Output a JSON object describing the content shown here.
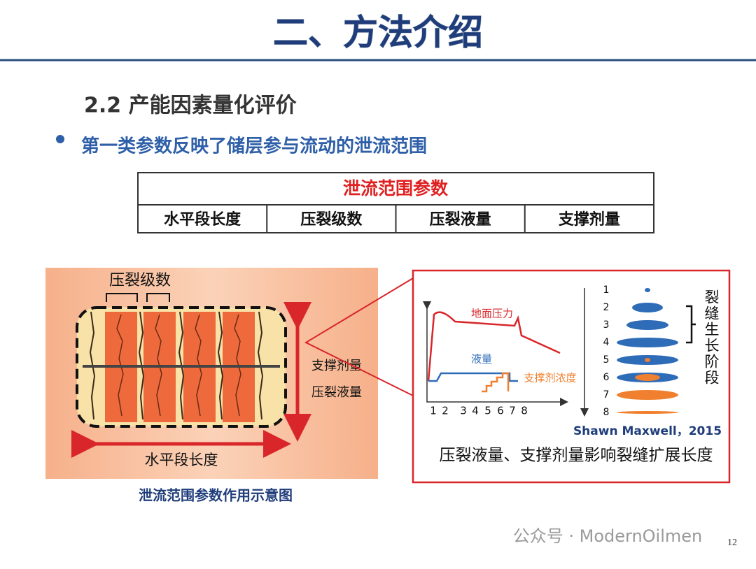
{
  "header": {
    "title": "二、方法介绍"
  },
  "section": {
    "title": "2.2 产能因素量化评价",
    "bullet": "第一类参数反映了储层参与流动的泄流范围"
  },
  "table": {
    "header": "泄流范围参数",
    "cells": [
      "水平段长度",
      "压裂级数",
      "压裂液量",
      "支撑剂量"
    ]
  },
  "left_figure": {
    "stage_label": "压裂级数",
    "proppant_label": "支撑剂量",
    "fluid_label": "压裂液量",
    "length_label": "水平段长度",
    "caption": "泄流范围参数作用示意图"
  },
  "right_figure": {
    "pressure_label": "地面压力",
    "fluid_label": "液量",
    "proppant_label": "支撑剂浓度",
    "x_labels": [
      "1",
      "2",
      "3",
      "4",
      "5",
      "6",
      "7",
      "8"
    ],
    "stage_numbers": [
      "1",
      "2",
      "3",
      "4",
      "5",
      "6",
      "7",
      "8"
    ],
    "growth_label": "裂缝生长阶段",
    "citation": "Shawn Maxwell，2015",
    "caption": "压裂液量、支撑剂量影响裂缝扩展长度"
  },
  "footer": {
    "watermark": "公众号 · ModernOilmen",
    "page_number": "12"
  }
}
